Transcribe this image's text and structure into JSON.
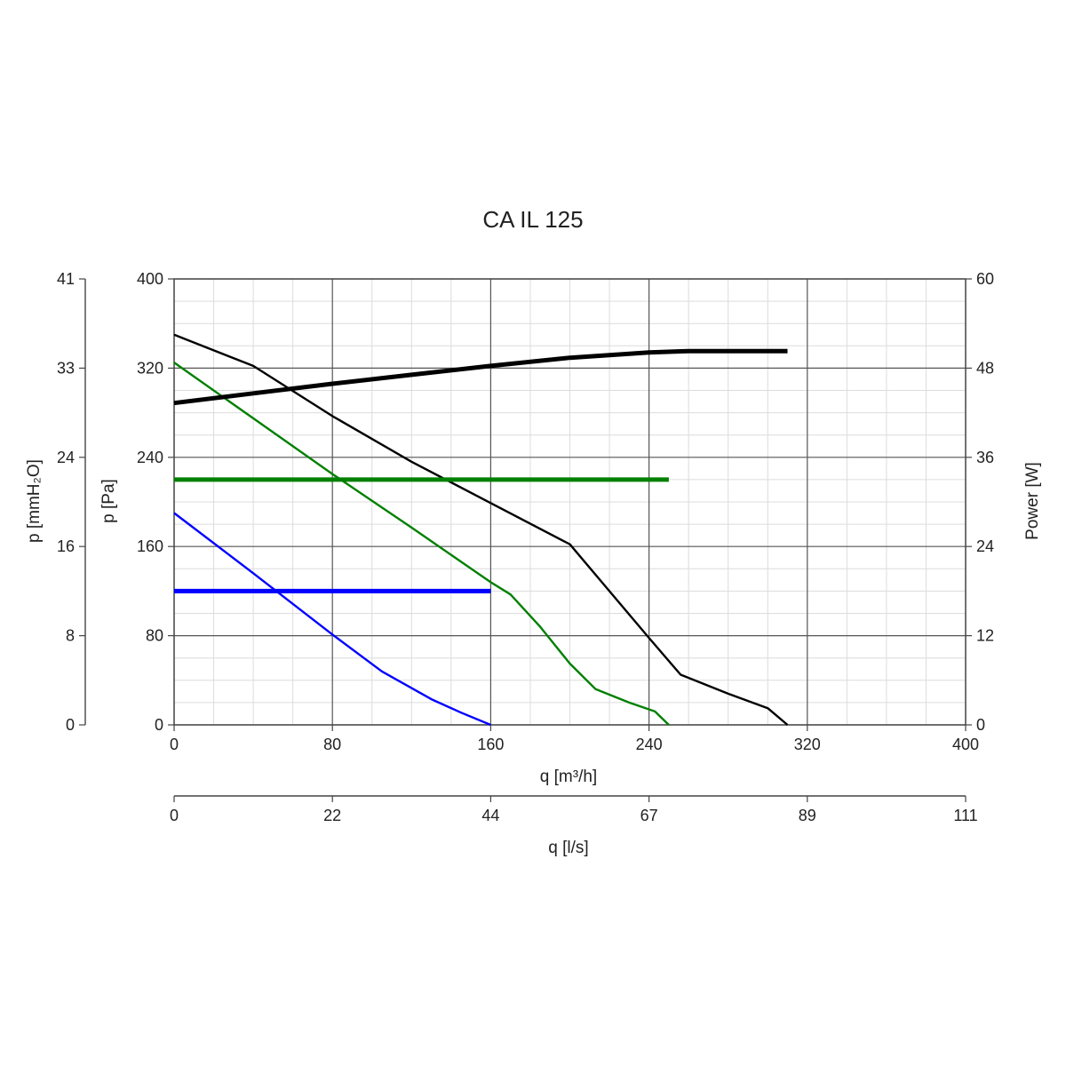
{
  "chart_data": {
    "type": "line",
    "title": "CA IL 125",
    "grid": true,
    "xlabel": "q [m³/h]",
    "xlim": [
      0,
      400
    ],
    "x_ticks": [
      "0",
      "80",
      "160",
      "240",
      "320",
      "400"
    ],
    "x2label": "q [l/s]",
    "x2_ticks": [
      "0",
      "22",
      "44",
      "67",
      "89",
      "111"
    ],
    "ylabel": "p [Pa]",
    "ylim": [
      0,
      400
    ],
    "y_ticks": [
      "0",
      "80",
      "160",
      "240",
      "320",
      "400"
    ],
    "y_left_outer_label": "p [mmH₂O]",
    "y_left_outer_ticks": [
      "0",
      "8",
      "16",
      "24",
      "33",
      "41"
    ],
    "y_right_label": "Power [W]",
    "y_right_lim": [
      0,
      60
    ],
    "y_right_ticks": [
      "0",
      "12",
      "24",
      "36",
      "48",
      "60"
    ],
    "series": [
      {
        "axis": "pressure",
        "color": "#000000",
        "points": [
          [
            0,
            350
          ],
          [
            40,
            322
          ],
          [
            80,
            277
          ],
          [
            120,
            236
          ],
          [
            160,
            199
          ],
          [
            200,
            162
          ],
          [
            220,
            120
          ],
          [
            240,
            78
          ],
          [
            256,
            45
          ],
          [
            280,
            28
          ],
          [
            300,
            15
          ],
          [
            310,
            0
          ]
        ]
      },
      {
        "axis": "pressure",
        "color": "#008000",
        "points": [
          [
            0,
            325
          ],
          [
            40,
            275
          ],
          [
            80,
            225
          ],
          [
            120,
            177
          ],
          [
            160,
            128
          ],
          [
            170,
            117
          ],
          [
            185,
            88
          ],
          [
            200,
            55
          ],
          [
            213,
            32
          ],
          [
            230,
            20
          ],
          [
            243,
            12
          ],
          [
            250,
            0
          ]
        ]
      },
      {
        "axis": "pressure",
        "color": "#0000ff",
        "points": [
          [
            0,
            190
          ],
          [
            40,
            136
          ],
          [
            80,
            81
          ],
          [
            105,
            48
          ],
          [
            130,
            23
          ],
          [
            145,
            11
          ],
          [
            160,
            0
          ]
        ]
      },
      {
        "axis": "power",
        "color": "#000000",
        "points": [
          [
            0,
            43.3
          ],
          [
            40,
            44.6
          ],
          [
            80,
            45.9
          ],
          [
            120,
            47.1
          ],
          [
            160,
            48.3
          ],
          [
            200,
            49.4
          ],
          [
            240,
            50.1
          ],
          [
            260,
            50.3
          ],
          [
            300,
            50.3
          ],
          [
            310,
            50.3
          ]
        ]
      },
      {
        "axis": "power",
        "color": "#008000",
        "points": [
          [
            0,
            33.0
          ],
          [
            250,
            33.0
          ]
        ]
      },
      {
        "axis": "power",
        "color": "#0000ff",
        "points": [
          [
            0,
            18.0
          ],
          [
            160,
            18.0
          ]
        ]
      }
    ]
  }
}
